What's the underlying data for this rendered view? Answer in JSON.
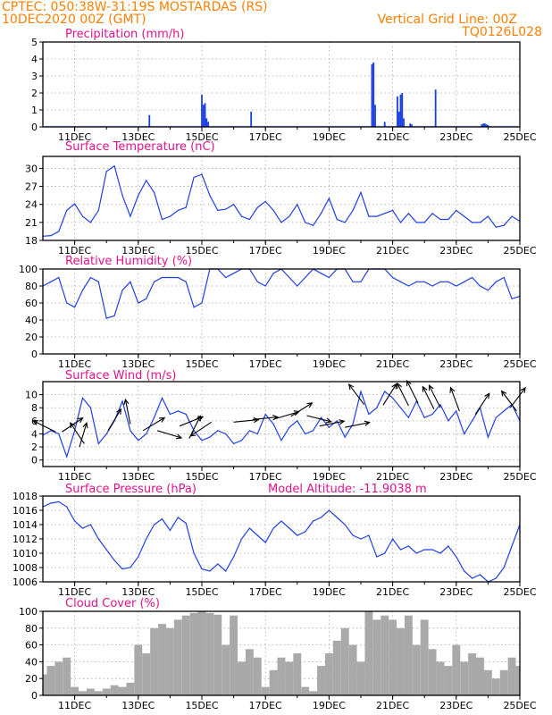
{
  "header": {
    "line1_left": "CPTEC:   050:38W-31:19S   MOSTARDAS (RS)",
    "line2_left": "10DEC2020 00Z (GMT)",
    "line1_right": "Vertical Grid Line: 00Z",
    "line2_right": "TQ0126L028"
  },
  "colors": {
    "header": "#ff8000",
    "panel_title": "#e0138c",
    "series_line": "#1f3fe6",
    "precip_bar": "#1a3fe0",
    "wind_arrow": "#000000",
    "cloud_fill": "#a9a9a9"
  },
  "chart_data": [
    {
      "type": "bar",
      "title": "Precipitation (mm/h)",
      "x_unit": "days since 10DEC2020 00Z",
      "xlim": [
        10.0,
        25.0
      ],
      "x_tick_labels": [
        "11DEC",
        "13DEC",
        "15DEC",
        "17DEC",
        "19DEC",
        "21DEC",
        "23DEC",
        "25DEC"
      ],
      "ylim": [
        0,
        5
      ],
      "y_ticks": [
        0,
        1,
        2,
        3,
        4,
        5
      ],
      "grid": true,
      "x": [
        13.35,
        15.0,
        15.05,
        15.1,
        15.15,
        15.2,
        16.55,
        20.35,
        20.4,
        20.45,
        20.75,
        21.15,
        21.2,
        21.25,
        21.3,
        21.35,
        21.55,
        21.6,
        22.35,
        23.8,
        23.85,
        23.9,
        23.95,
        24.0
      ],
      "values": [
        0.7,
        1.9,
        1.3,
        1.4,
        0.5,
        0.3,
        0.9,
        3.7,
        3.8,
        1.3,
        0.3,
        1.8,
        0.9,
        1.9,
        2.0,
        0.5,
        0.2,
        0.15,
        2.2,
        0.15,
        0.2,
        0.2,
        0.15,
        0.1
      ]
    },
    {
      "type": "line",
      "title": "Surface Temperature (nC)",
      "xlim": [
        10.0,
        25.0
      ],
      "x_tick_labels": [
        "11DEC",
        "13DEC",
        "15DEC",
        "17DEC",
        "19DEC",
        "21DEC",
        "23DEC",
        "25DEC"
      ],
      "ylim": [
        18,
        32
      ],
      "y_ticks": [
        18,
        21,
        24,
        27,
        30
      ],
      "grid": true,
      "x": [
        10.0,
        10.25,
        10.5,
        10.75,
        11.0,
        11.25,
        11.5,
        11.75,
        12.0,
        12.25,
        12.5,
        12.75,
        13.0,
        13.25,
        13.5,
        13.75,
        14.0,
        14.25,
        14.5,
        14.75,
        15.0,
        15.25,
        15.5,
        15.75,
        16.0,
        16.25,
        16.5,
        16.75,
        17.0,
        17.25,
        17.5,
        17.75,
        18.0,
        18.25,
        18.5,
        18.75,
        19.0,
        19.25,
        19.5,
        19.75,
        20.0,
        20.25,
        20.5,
        20.75,
        21.0,
        21.25,
        21.5,
        21.75,
        22.0,
        22.25,
        22.5,
        22.75,
        23.0,
        23.25,
        23.5,
        23.75,
        24.0,
        24.25,
        24.5,
        24.75,
        25.0
      ],
      "values": [
        18.7,
        18.8,
        19.5,
        23.0,
        24.1,
        22.0,
        21.0,
        23.0,
        29.5,
        30.4,
        25.5,
        22.0,
        25.5,
        28.0,
        26.0,
        21.5,
        22.0,
        23.0,
        23.5,
        28.5,
        29.0,
        25.5,
        23.0,
        23.2,
        24.0,
        22.0,
        21.5,
        23.5,
        24.5,
        23.0,
        21.0,
        22.0,
        24.0,
        21.0,
        20.5,
        22.5,
        25.0,
        21.5,
        21.0,
        23.0,
        26.0,
        22.0,
        22.0,
        22.5,
        23.0,
        21.0,
        22.5,
        21.0,
        21.0,
        22.5,
        21.5,
        21.5,
        23.0,
        22.0,
        21.0,
        21.0,
        22.0,
        20.2,
        20.5,
        22.0,
        21.2
      ]
    },
    {
      "type": "line",
      "title": "Relative Humidity (%)",
      "xlim": [
        10.0,
        25.0
      ],
      "x_tick_labels": [
        "11DEC",
        "13DEC",
        "15DEC",
        "17DEC",
        "19DEC",
        "21DEC",
        "23DEC",
        "25DEC"
      ],
      "ylim": [
        0,
        100
      ],
      "y_ticks": [
        0,
        20,
        40,
        60,
        80,
        100
      ],
      "grid": true,
      "x": [
        10.0,
        10.25,
        10.5,
        10.75,
        11.0,
        11.25,
        11.5,
        11.75,
        12.0,
        12.25,
        12.5,
        12.75,
        13.0,
        13.25,
        13.5,
        13.75,
        14.0,
        14.25,
        14.5,
        14.75,
        15.0,
        15.25,
        15.5,
        15.75,
        16.0,
        16.25,
        16.5,
        16.75,
        17.0,
        17.25,
        17.5,
        17.75,
        18.0,
        18.25,
        18.5,
        18.75,
        19.0,
        19.25,
        19.5,
        19.75,
        20.0,
        20.25,
        20.5,
        20.75,
        21.0,
        21.25,
        21.5,
        21.75,
        22.0,
        22.25,
        22.5,
        22.75,
        23.0,
        23.25,
        23.5,
        23.75,
        24.0,
        24.25,
        24.5,
        24.75,
        25.0
      ],
      "values": [
        80.0,
        85.0,
        90.0,
        60.0,
        55.0,
        75.0,
        90.0,
        85.0,
        42.0,
        45.0,
        75.0,
        85.0,
        60.0,
        65.0,
        85.0,
        90.0,
        90.0,
        90.0,
        85.0,
        55.0,
        60.0,
        100.0,
        100.0,
        90.0,
        95.0,
        100.0,
        100.0,
        85.0,
        80.0,
        95.0,
        100.0,
        90.0,
        80.0,
        90.0,
        100.0,
        95.0,
        90.0,
        100.0,
        100.0,
        85.0,
        85.0,
        100.0,
        100.0,
        100.0,
        90.0,
        85.0,
        80.0,
        85.0,
        85.0,
        80.0,
        85.0,
        85.0,
        80.0,
        85.0,
        90.0,
        80.0,
        75.0,
        85.0,
        90.0,
        65.0,
        68.0
      ]
    },
    {
      "type": "line",
      "title": "Surface Wind (m/s)",
      "xlim": [
        10.0,
        25.0
      ],
      "x_tick_labels": [
        "11DEC",
        "13DEC",
        "15DEC",
        "17DEC",
        "19DEC",
        "21DEC",
        "23DEC",
        "25DEC"
      ],
      "ylim": [
        -1,
        12
      ],
      "y_ticks": [
        0,
        2,
        4,
        6,
        8,
        10
      ],
      "grid": true,
      "x": [
        10.0,
        10.25,
        10.5,
        10.75,
        11.0,
        11.25,
        11.5,
        11.75,
        12.0,
        12.25,
        12.5,
        12.75,
        13.0,
        13.25,
        13.5,
        13.75,
        14.0,
        14.25,
        14.5,
        14.75,
        15.0,
        15.25,
        15.5,
        15.75,
        16.0,
        16.25,
        16.5,
        16.75,
        17.0,
        17.25,
        17.5,
        17.75,
        18.0,
        18.25,
        18.5,
        18.75,
        19.0,
        19.25,
        19.5,
        19.75,
        20.0,
        20.25,
        20.5,
        20.75,
        21.0,
        21.25,
        21.5,
        21.75,
        22.0,
        22.25,
        22.5,
        22.75,
        23.0,
        23.25,
        23.5,
        23.75,
        24.0,
        24.25,
        24.5,
        24.75,
        25.0
      ],
      "values": [
        3.8,
        4.5,
        4.0,
        0.5,
        4.5,
        9.5,
        8.0,
        2.5,
        4.0,
        6.0,
        9.0,
        4.5,
        3.0,
        4.0,
        6.5,
        9.5,
        7.0,
        7.5,
        7.0,
        4.5,
        3.0,
        3.5,
        4.5,
        4.0,
        2.5,
        3.0,
        4.5,
        4.0,
        7.0,
        5.5,
        3.0,
        5.0,
        6.0,
        4.0,
        4.5,
        6.5,
        5.0,
        6.0,
        3.5,
        5.5,
        10.5,
        7.0,
        8.0,
        10.5,
        9.5,
        8.0,
        6.5,
        9.0,
        6.5,
        7.0,
        8.5,
        6.0,
        7.5,
        4.0,
        6.0,
        8.0,
        3.5,
        6.5,
        7.5,
        8.5,
        6.0
      ],
      "arrows": [
        [
          10.4,
          4.3,
          -0.6,
          0.3
        ],
        [
          10.6,
          4.3,
          0.6,
          0.4
        ],
        [
          11.15,
          2.0,
          0.3,
          1.0
        ],
        [
          11.3,
          2.5,
          -0.4,
          0.6
        ],
        [
          12.05,
          4.5,
          0.6,
          1.0
        ],
        [
          12.75,
          5.5,
          -0.2,
          1.0
        ],
        [
          13.15,
          4.5,
          0.5,
          0.3
        ],
        [
          13.6,
          4.5,
          1.0,
          -0.3
        ],
        [
          14.3,
          5.2,
          1.0,
          0.4
        ],
        [
          14.6,
          3.3,
          0.4,
          0.8
        ],
        [
          15.3,
          5.8,
          -0.6,
          -0.4
        ],
        [
          16.0,
          5.8,
          1.0,
          0.1
        ],
        [
          16.6,
          6.2,
          1.0,
          0.1
        ],
        [
          17.3,
          6.3,
          1.0,
          0.3
        ],
        [
          17.8,
          6.7,
          0.8,
          0.5
        ],
        [
          18.3,
          6.8,
          0.8,
          -0.2
        ],
        [
          18.7,
          5.2,
          1.0,
          0.2
        ],
        [
          19.5,
          5.0,
          1.0,
          0.2
        ],
        [
          20.1,
          8.5,
          -0.6,
          0.8
        ],
        [
          20.7,
          8.4,
          0.5,
          0.8
        ],
        [
          21.5,
          8.3,
          -0.4,
          0.8
        ],
        [
          21.8,
          8.7,
          -0.4,
          0.8
        ],
        [
          22.3,
          7.8,
          -0.4,
          0.8
        ],
        [
          22.5,
          8.0,
          -0.4,
          0.8
        ],
        [
          23.1,
          7.5,
          -0.3,
          0.8
        ],
        [
          23.6,
          7.0,
          0.6,
          0.9
        ],
        [
          24.7,
          8.0,
          0.6,
          0.8
        ],
        [
          24.9,
          7.5,
          -0.6,
          0.8
        ]
      ]
    },
    {
      "type": "line",
      "title": "Surface Pressure (hPa)",
      "annotation": "Model Altitude: -11.9038 m",
      "xlim": [
        10.0,
        25.0
      ],
      "x_tick_labels": [
        "11DEC",
        "13DEC",
        "15DEC",
        "17DEC",
        "19DEC",
        "21DEC",
        "23DEC",
        "25DEC"
      ],
      "ylim": [
        1006,
        1018
      ],
      "y_ticks": [
        1006,
        1008,
        1010,
        1012,
        1014,
        1016,
        1018
      ],
      "grid": true,
      "x": [
        10.0,
        10.25,
        10.5,
        10.75,
        11.0,
        11.25,
        11.5,
        11.75,
        12.0,
        12.25,
        12.5,
        12.75,
        13.0,
        13.25,
        13.5,
        13.75,
        14.0,
        14.25,
        14.5,
        14.75,
        15.0,
        15.25,
        15.5,
        15.75,
        16.0,
        16.25,
        16.5,
        16.75,
        17.0,
        17.25,
        17.5,
        17.75,
        18.0,
        18.25,
        18.5,
        18.75,
        19.0,
        19.25,
        19.5,
        19.75,
        20.0,
        20.25,
        20.5,
        20.75,
        21.0,
        21.25,
        21.5,
        21.75,
        22.0,
        22.25,
        22.5,
        22.75,
        23.0,
        23.25,
        23.5,
        23.75,
        24.0,
        24.25,
        24.5,
        24.75,
        25.0
      ],
      "values": [
        1016.5,
        1017.0,
        1017.2,
        1016.5,
        1014.5,
        1013.5,
        1014.0,
        1012.0,
        1010.5,
        1009.0,
        1007.8,
        1008.0,
        1009.5,
        1012.0,
        1014.0,
        1014.8,
        1013.2,
        1015.0,
        1014.2,
        1010.0,
        1007.8,
        1007.5,
        1008.5,
        1007.5,
        1009.5,
        1012.0,
        1013.5,
        1012.5,
        1011.5,
        1013.5,
        1014.5,
        1013.5,
        1012.5,
        1013.0,
        1014.5,
        1015.0,
        1016.0,
        1015.0,
        1014.0,
        1012.5,
        1012.0,
        1012.5,
        1009.5,
        1010.0,
        1012.0,
        1010.5,
        1011.0,
        1010.0,
        1010.5,
        1010.5,
        1010.0,
        1011.0,
        1009.5,
        1007.5,
        1006.5,
        1007.0,
        1006.0,
        1006.5,
        1008.0,
        1011.0,
        1014.0
      ]
    },
    {
      "type": "bar",
      "title": "Cloud Cover (%)",
      "xlim": [
        10.0,
        25.0
      ],
      "x_tick_labels": [
        "11DEC",
        "13DEC",
        "15DEC",
        "17DEC",
        "19DEC",
        "21DEC",
        "23DEC",
        "25DEC"
      ],
      "ylim": [
        0,
        100
      ],
      "y_ticks": [
        0,
        20,
        40,
        60,
        80,
        100
      ],
      "grid": true,
      "x": [
        10.0,
        10.25,
        10.5,
        10.75,
        11.0,
        11.25,
        11.5,
        11.75,
        12.0,
        12.25,
        12.5,
        12.75,
        13.0,
        13.25,
        13.5,
        13.75,
        14.0,
        14.25,
        14.5,
        14.75,
        15.0,
        15.25,
        15.5,
        15.75,
        16.0,
        16.25,
        16.5,
        16.75,
        17.0,
        17.25,
        17.5,
        17.75,
        18.0,
        18.25,
        18.5,
        18.75,
        19.0,
        19.25,
        19.5,
        19.75,
        20.0,
        20.25,
        20.5,
        20.75,
        21.0,
        21.25,
        21.5,
        21.75,
        22.0,
        22.25,
        22.5,
        22.75,
        23.0,
        23.25,
        23.5,
        23.75,
        24.0,
        24.25,
        24.5,
        24.75,
        25.0
      ],
      "values": [
        25,
        35,
        40,
        45,
        10,
        5,
        8,
        5,
        8,
        12,
        10,
        15,
        60,
        50,
        80,
        85,
        80,
        90,
        95,
        98,
        100,
        98,
        96,
        60,
        95,
        40,
        55,
        45,
        10,
        30,
        45,
        40,
        50,
        10,
        5,
        35,
        50,
        65,
        80,
        60,
        40,
        100,
        90,
        95,
        90,
        80,
        95,
        60,
        90,
        55,
        40,
        35,
        60,
        40,
        50,
        45,
        30,
        20,
        30,
        45,
        35
      ]
    }
  ]
}
